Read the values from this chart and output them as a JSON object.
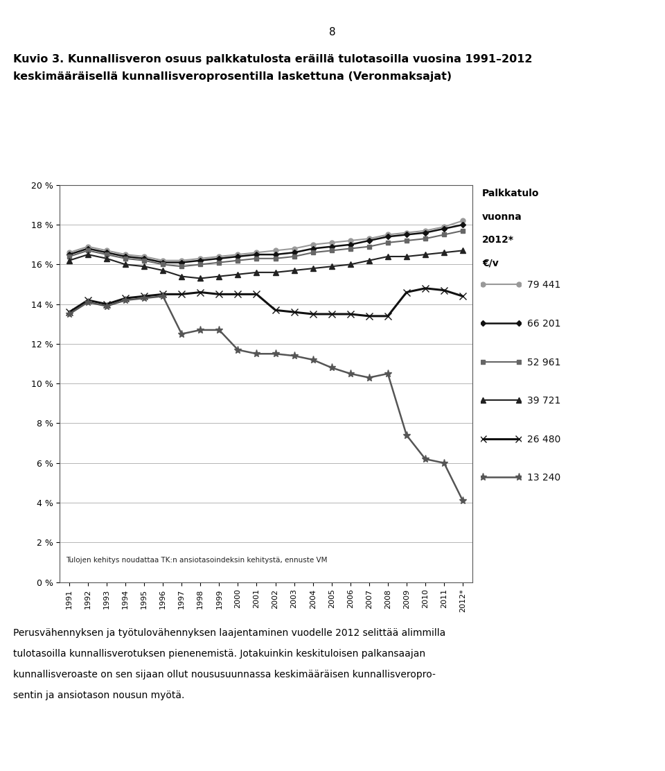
{
  "page_number": "8",
  "title_line1": "Kuvio 3. Kunnallisveron osuus palkkatulosta eräillä tulotasoilla vuosina 1991–2012",
  "title_line2": "keskimääräisellä kunnallisveroprosentilla laskettuna (Veronmaksajat)",
  "legend_title_line1": "Palkkatulo",
  "legend_title_line2": "vuonna",
  "legend_title_line3": "2012*",
  "legend_title_line4": "€/v",
  "annotation": "Tulojen kehitys noudattaa TK:n ansiotasoindeksin kehitystä, ennuste VM",
  "footer_line1": "Perusvähennyksen ja työtulovähennyksen laajentaminen vuodelle 2012 selittää alimmilla",
  "footer_line2": "tulotasoilla kunnallisverotuksen pienenemistä. Jotakuinkin keskituloisen palkansaajan",
  "footer_line3": "kunnallisveroaste on sen sijaan ollut noususuunnassa keskimääräisen kunnallisveropro-",
  "footer_line4": "sentin ja ansiotason nousun myötä.",
  "years": [
    1991,
    1992,
    1993,
    1994,
    1995,
    1996,
    1997,
    1998,
    1999,
    2000,
    2001,
    2002,
    2003,
    2004,
    2005,
    2006,
    2007,
    2008,
    2009,
    2010,
    2011,
    2012
  ],
  "series": {
    "79441": {
      "label": "79 441",
      "color": "#999999",
      "linewidth": 1.5,
      "marker": "o",
      "markersize": 5,
      "values": [
        16.6,
        16.9,
        16.7,
        16.5,
        16.4,
        16.2,
        16.2,
        16.3,
        16.4,
        16.5,
        16.6,
        16.7,
        16.8,
        17.0,
        17.1,
        17.2,
        17.3,
        17.5,
        17.6,
        17.7,
        17.9,
        18.2
      ]
    },
    "66201": {
      "label": "66 201",
      "color": "#111111",
      "linewidth": 1.8,
      "marker": "D",
      "markersize": 4,
      "values": [
        16.5,
        16.8,
        16.6,
        16.4,
        16.3,
        16.1,
        16.1,
        16.2,
        16.3,
        16.4,
        16.5,
        16.5,
        16.6,
        16.8,
        16.9,
        17.0,
        17.2,
        17.4,
        17.5,
        17.6,
        17.8,
        18.0
      ]
    },
    "52961": {
      "label": "52 961",
      "color": "#666666",
      "linewidth": 1.5,
      "marker": "s",
      "markersize": 5,
      "values": [
        16.4,
        16.7,
        16.5,
        16.3,
        16.2,
        16.0,
        15.9,
        16.0,
        16.1,
        16.2,
        16.3,
        16.3,
        16.4,
        16.6,
        16.7,
        16.8,
        16.9,
        17.1,
        17.2,
        17.3,
        17.5,
        17.7
      ]
    },
    "39721": {
      "label": "39 721",
      "color": "#222222",
      "linewidth": 1.5,
      "marker": "^",
      "markersize": 6,
      "values": [
        16.2,
        16.5,
        16.3,
        16.0,
        15.9,
        15.7,
        15.4,
        15.3,
        15.4,
        15.5,
        15.6,
        15.6,
        15.7,
        15.8,
        15.9,
        16.0,
        16.2,
        16.4,
        16.4,
        16.5,
        16.6,
        16.7
      ]
    },
    "26480": {
      "label": "26 480",
      "color": "#111111",
      "linewidth": 2.2,
      "marker": "x",
      "markersize": 7,
      "values": [
        13.6,
        14.2,
        14.0,
        14.3,
        14.4,
        14.5,
        14.5,
        14.6,
        14.5,
        14.5,
        14.5,
        13.7,
        13.6,
        13.5,
        13.5,
        13.5,
        13.4,
        13.4,
        14.6,
        14.8,
        14.7,
        14.4
      ]
    },
    "13240": {
      "label": "13 240",
      "color": "#555555",
      "linewidth": 1.8,
      "marker": "*",
      "markersize": 8,
      "values": [
        13.5,
        14.1,
        13.9,
        14.2,
        14.3,
        14.4,
        12.5,
        12.7,
        12.7,
        11.7,
        11.5,
        11.5,
        11.4,
        11.2,
        10.8,
        10.5,
        10.3,
        10.5,
        7.4,
        6.2,
        6.0,
        4.1
      ]
    }
  },
  "ylim": [
    0,
    20
  ],
  "yticks": [
    0,
    2,
    4,
    6,
    8,
    10,
    12,
    14,
    16,
    18,
    20
  ],
  "ytick_labels": [
    "0 %",
    "2 %",
    "4 %",
    "6 %",
    "8 %",
    "10 %",
    "12 %",
    "14 %",
    "16 %",
    "18 %",
    "20 %"
  ],
  "background_color": "#ffffff",
  "plot_bg_color": "#ffffff"
}
